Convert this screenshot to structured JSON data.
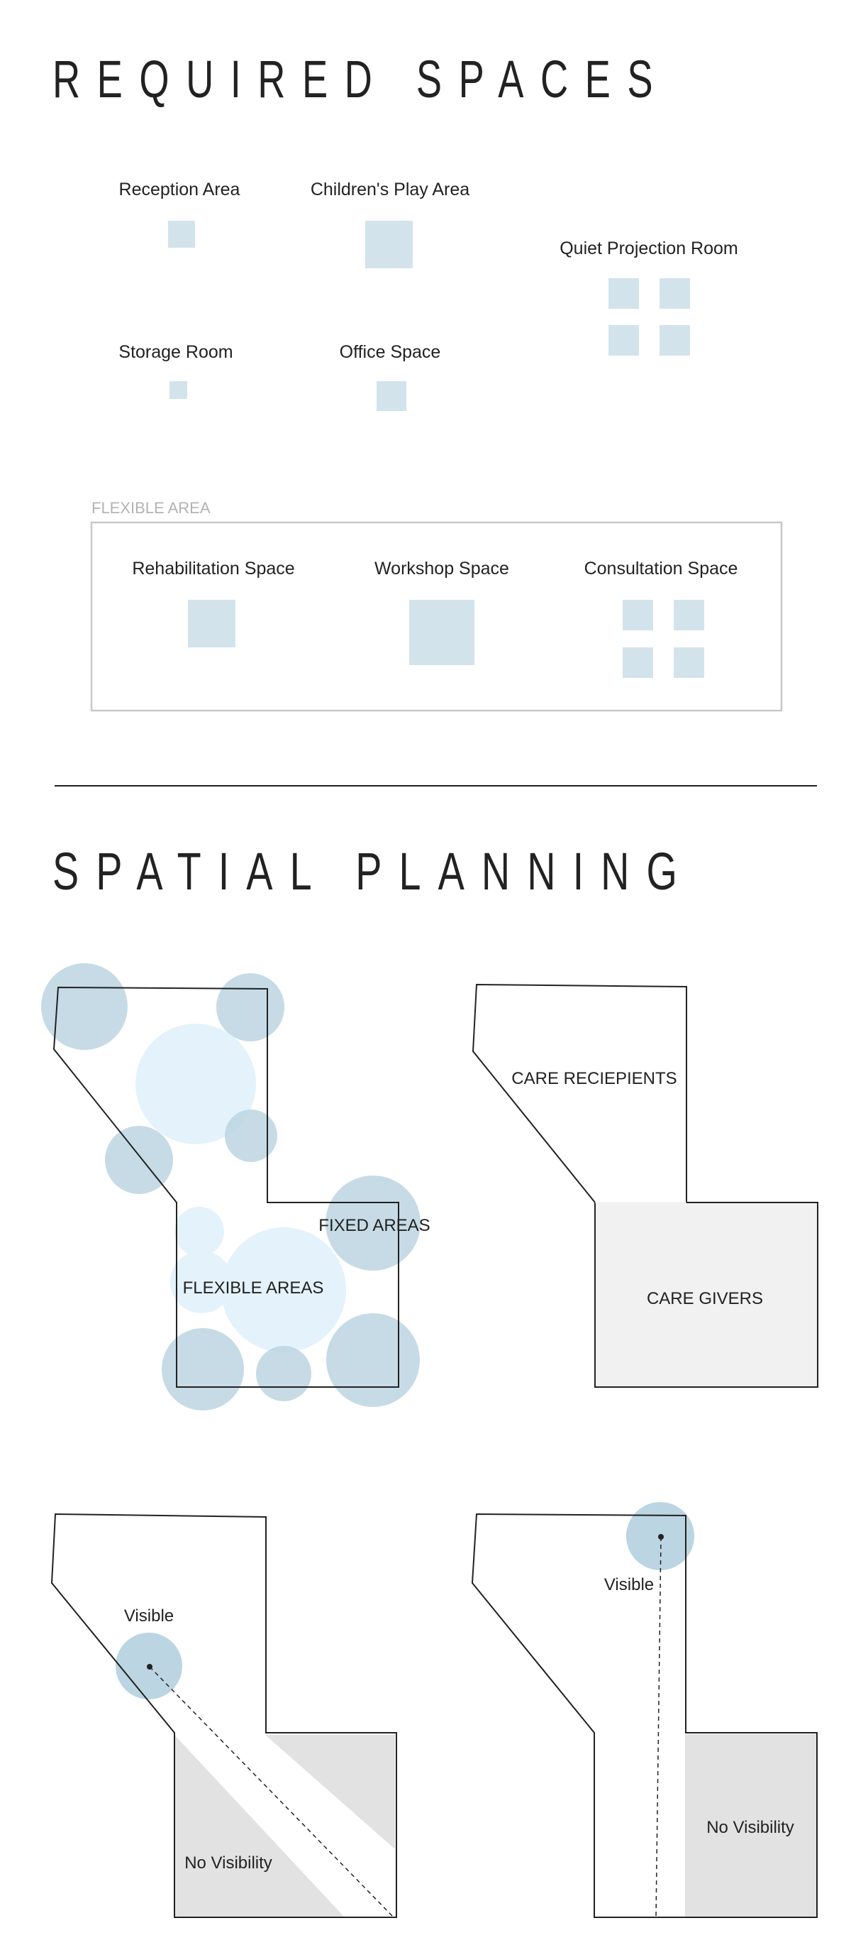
{
  "required_spaces": {
    "title": "REQUIRED SPACES",
    "rooms": {
      "reception": "Reception Area",
      "play": "Children's Play Area",
      "quiet": "Quiet Projection Room",
      "storage": "Storage Room",
      "office": "Office Space"
    },
    "flexible": {
      "label": "FLEXIBLE AREA",
      "rehab": "Rehabilitation Space",
      "workshop": "Workshop Space",
      "consult": "Consultation Space"
    }
  },
  "spatial_planning": {
    "title": "SPATIAL PLANNING",
    "diagram1": {
      "fixed": "FIXED AREAS",
      "flexible": "FLEXIBLE AREAS"
    },
    "diagram2": {
      "recipients": "CARE RECIEPIENTS",
      "givers": "CARE GIVERS"
    },
    "diagram3": {
      "visible": "Visible",
      "no_visibility": "No Visibility"
    },
    "diagram4": {
      "visible": "Visible",
      "no_visibility": "No Visibility"
    }
  },
  "colors": {
    "room": "#d3e3ec",
    "circle_dark": "#bcd5e2",
    "circle_light": "#e3f1fb",
    "shade": "#e2e2e2",
    "care_givers": "#f1f1f1"
  }
}
